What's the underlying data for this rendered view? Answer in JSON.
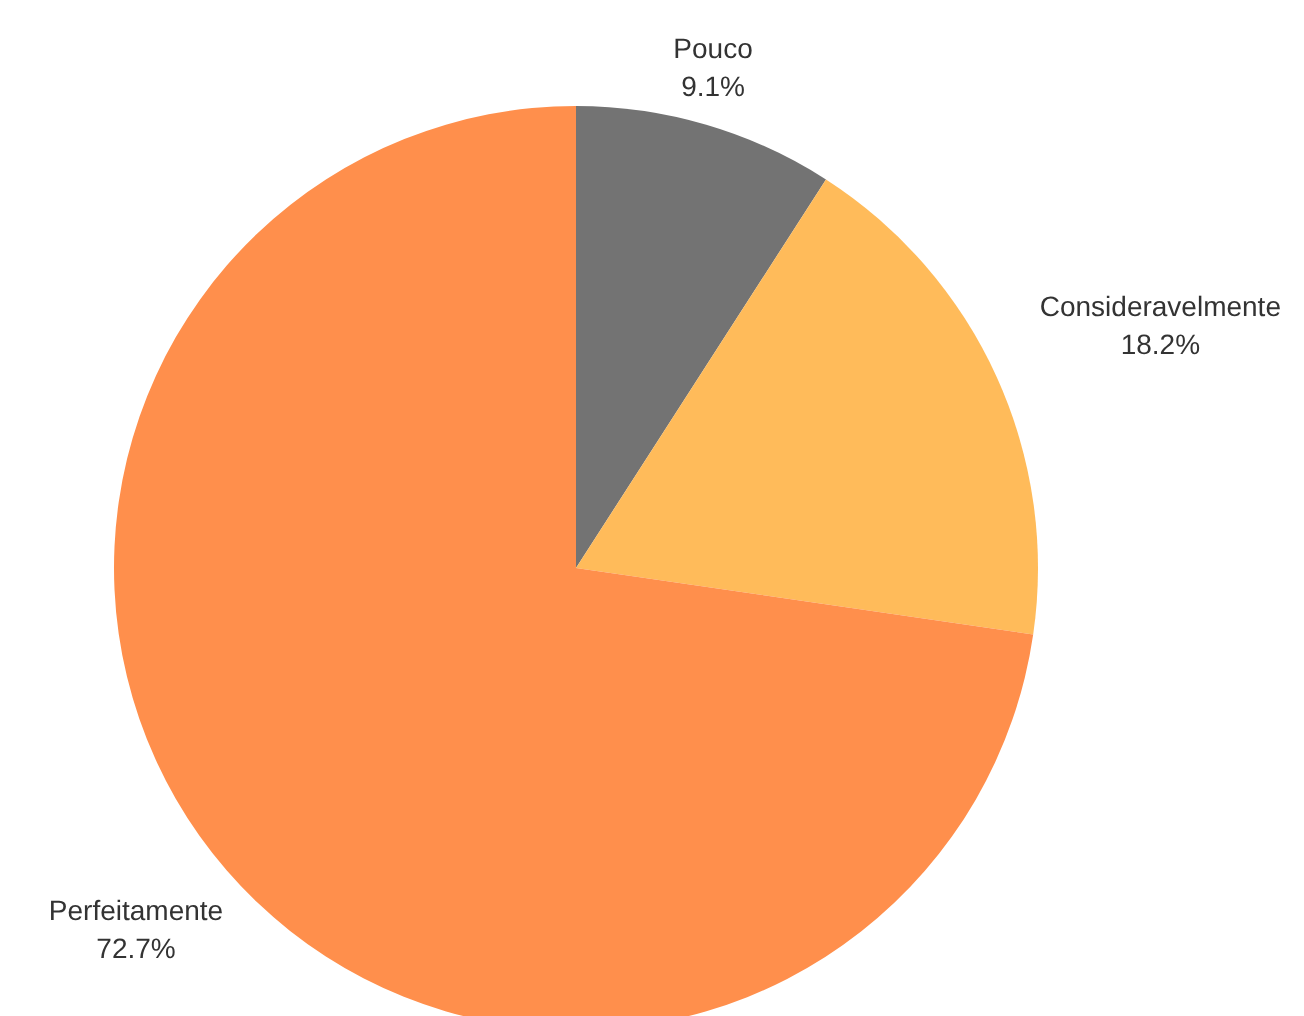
{
  "chart_data": {
    "type": "pie",
    "categories": [
      "Pouco",
      "Consideravelmente",
      "Perfeitamente"
    ],
    "values": [
      9.1,
      18.2,
      72.7
    ],
    "colors": [
      "#737373",
      "#ffbb5a",
      "#ff8f4c"
    ],
    "value_labels": [
      "9.1%",
      "18.2%",
      "72.7%"
    ]
  }
}
